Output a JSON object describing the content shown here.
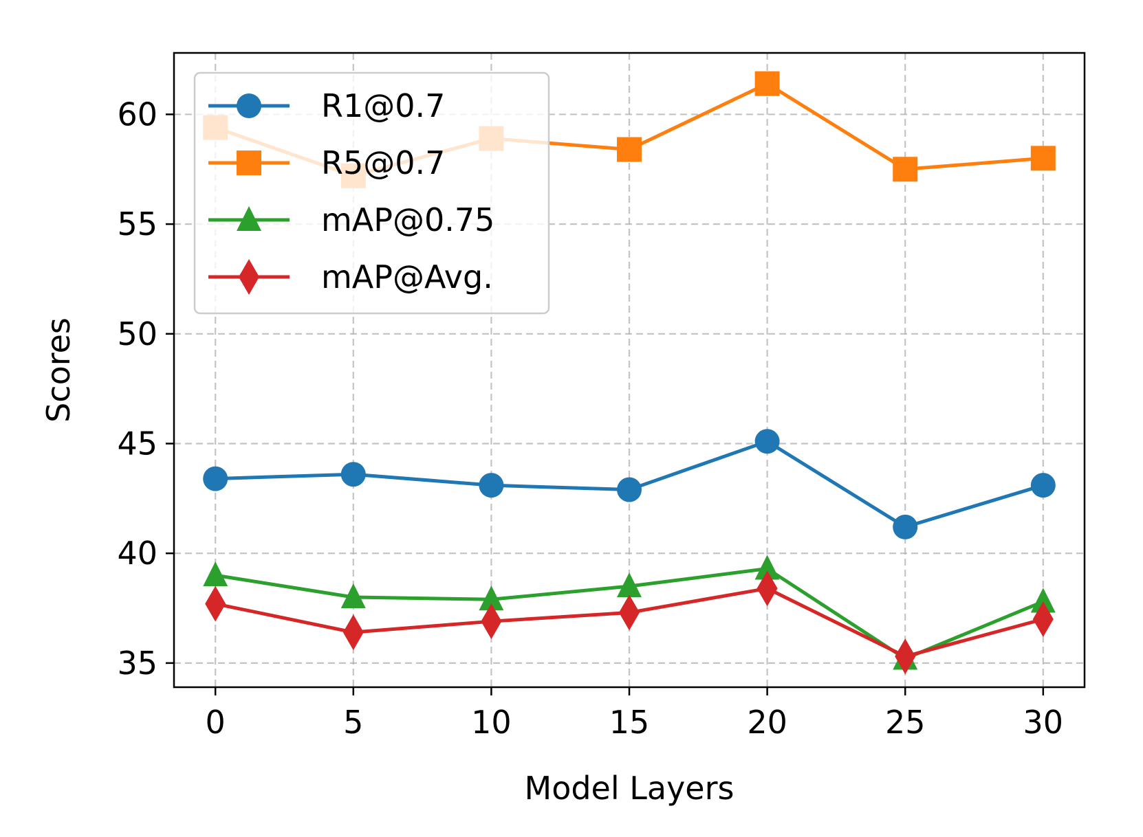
{
  "chart_data": {
    "type": "line",
    "title": "",
    "xlabel": "Model Layers",
    "ylabel": "Scores",
    "x": [
      0,
      5,
      10,
      15,
      20,
      25,
      30
    ],
    "xlim": [
      -1.5,
      31.5
    ],
    "ylim": [
      33.9,
      62.8
    ],
    "xticks": [
      "0",
      "5",
      "10",
      "15",
      "20",
      "25",
      "30"
    ],
    "yticks": [
      "35",
      "40",
      "45",
      "50",
      "55",
      "60"
    ],
    "grid": true,
    "legend_position": "upper-left",
    "series": [
      {
        "name": "R1@0.7",
        "color": "#1f77b4",
        "marker": "circle",
        "values": [
          43.4,
          43.6,
          43.1,
          42.9,
          45.1,
          41.2,
          43.1
        ]
      },
      {
        "name": "R5@0.7",
        "color": "#ff7f0e",
        "marker": "square",
        "values": [
          59.4,
          57.2,
          58.9,
          58.4,
          61.4,
          57.5,
          58.0
        ]
      },
      {
        "name": "mAP@0.75",
        "color": "#2ca02c",
        "marker": "triangle",
        "values": [
          39.0,
          38.0,
          37.9,
          38.5,
          39.3,
          35.2,
          37.8
        ]
      },
      {
        "name": "mAP@Avg.",
        "color": "#d62728",
        "marker": "diamond",
        "values": [
          37.7,
          36.4,
          36.9,
          37.3,
          38.4,
          35.3,
          37.0
        ]
      }
    ]
  }
}
